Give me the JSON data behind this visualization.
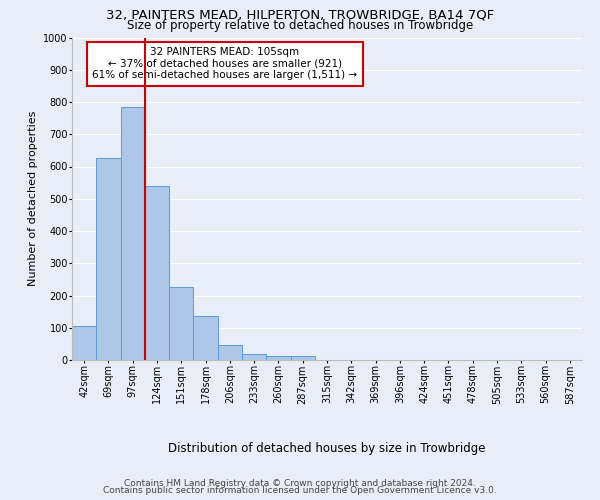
{
  "title_line1": "32, PAINTERS MEAD, HILPERTON, TROWBRIDGE, BA14 7QF",
  "title_line2": "Size of property relative to detached houses in Trowbridge",
  "xlabel": "Distribution of detached houses by size in Trowbridge",
  "ylabel": "Number of detached properties",
  "bin_labels": [
    "42sqm",
    "69sqm",
    "97sqm",
    "124sqm",
    "151sqm",
    "178sqm",
    "206sqm",
    "233sqm",
    "260sqm",
    "287sqm",
    "315sqm",
    "342sqm",
    "369sqm",
    "396sqm",
    "424sqm",
    "451sqm",
    "478sqm",
    "505sqm",
    "533sqm",
    "560sqm",
    "587sqm"
  ],
  "bar_values": [
    105,
    625,
    785,
    540,
    225,
    135,
    45,
    18,
    12,
    12,
    0,
    0,
    0,
    0,
    0,
    0,
    0,
    0,
    0,
    0,
    0
  ],
  "bar_color": "#aec6e8",
  "bar_edge_color": "#5b9bd5",
  "vline_x": 2.5,
  "vline_color": "#cc0000",
  "annotation_text": "32 PAINTERS MEAD: 105sqm\n← 37% of detached houses are smaller (921)\n61% of semi-detached houses are larger (1,511) →",
  "annotation_box_color": "#ffffff",
  "annotation_box_edge": "#cc0000",
  "ylim": [
    0,
    1000
  ],
  "yticks": [
    0,
    100,
    200,
    300,
    400,
    500,
    600,
    700,
    800,
    900,
    1000
  ],
  "footer_line1": "Contains HM Land Registry data © Crown copyright and database right 2024.",
  "footer_line2": "Contains public sector information licensed under the Open Government Licence v3.0.",
  "bg_color": "#e8eef8",
  "plot_bg_color": "#e8eef8",
  "grid_color": "#ffffff",
  "title1_fontsize": 9.5,
  "title2_fontsize": 8.5,
  "axis_label_fontsize": 8,
  "tick_fontsize": 7,
  "footer_fontsize": 6.5,
  "annot_fontsize": 7.5
}
